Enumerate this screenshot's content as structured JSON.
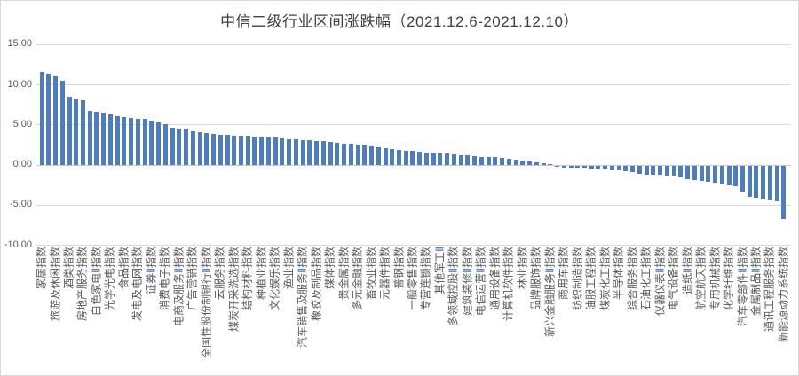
{
  "colors": {
    "bar": "#4f7cba",
    "grid": "#d9d9d9",
    "zero_axis": "#c9c9c9",
    "axis_text": "#595959",
    "title_text": "#404040",
    "roman_numeral_accent": "#4472c4",
    "frame": "#d9d9d9",
    "background": "#ffffff"
  },
  "chart_data": {
    "type": "bar",
    "title": "中信二级行业区间涨跌幅（2021.12.6-2021.12.10）",
    "ylabel": "",
    "xlabel": "",
    "ylim": [
      -10,
      15
    ],
    "grid": true,
    "legend": false,
    "yticks": [
      {
        "value": 15,
        "label": "15.00"
      },
      {
        "value": 10,
        "label": "10.00"
      },
      {
        "value": 5,
        "label": "5.00"
      },
      {
        "value": 0,
        "label": "0.00"
      },
      {
        "value": -5,
        "label": "-5.00"
      },
      {
        "value": -10,
        "label": "-10.00"
      }
    ],
    "note_label_interval": "axis labels shown for every 2nd bar",
    "label_every_n_bars": 2,
    "x_labels": [
      "家居指数",
      "旅游及休闲指数",
      "酒类指数",
      "房地产服务指数",
      "白色家电Ⅱ指数",
      "光学光电指数",
      "食品指数",
      "发电及电网指数",
      "证券Ⅱ指数",
      "消费电子指数",
      "电商及服务Ⅱ指数",
      "广告营销指数",
      "全国性股份制银行Ⅱ指数",
      "云服务指数",
      "煤炭开采洗选指数",
      "结构材料指数",
      "种植业指数",
      "文化娱乐指数",
      "渔业指数",
      "汽车销售及服务Ⅱ指数",
      "橡胶及制品指数",
      "媒体指数",
      "贵金属指数",
      "多元金融指数",
      "畜牧业指数",
      "元器件指数",
      "普钢指数",
      "一般零售指数",
      "专营连锁指数",
      "其他军工Ⅱ",
      "多领域控股Ⅱ指数",
      "建筑装修Ⅱ指数",
      "电信运营Ⅱ指数",
      "通用设备指数",
      "计算机软件指数",
      "林业指数",
      "品牌服饰指数",
      "新兴金融服务Ⅱ指数",
      "商用车指数",
      "纺织制造指数",
      "油服工程指数",
      "煤炭化工指数",
      "半导体指数",
      "综合服务指数",
      "石油化工指数",
      "仪器仪表Ⅱ指数",
      "电气设备指数",
      "造纸Ⅱ指数",
      "航空航天指数",
      "专用机械指数",
      "化学纤维指数",
      "汽车零部件Ⅱ指数",
      "金属制品Ⅱ指数",
      "通讯工程服务指数",
      "新能源动力系统指数"
    ],
    "values": [
      11.6,
      11.3,
      11.0,
      10.4,
      8.5,
      8.1,
      8.0,
      6.7,
      6.6,
      6.5,
      6.3,
      6.0,
      5.9,
      5.85,
      5.7,
      5.65,
      5.5,
      5.3,
      5.0,
      4.6,
      4.5,
      4.45,
      4.2,
      4.1,
      3.9,
      3.8,
      3.75,
      3.7,
      3.65,
      3.6,
      3.55,
      3.5,
      3.45,
      3.4,
      3.35,
      3.3,
      3.2,
      3.15,
      3.1,
      3.0,
      2.95,
      2.9,
      2.8,
      2.75,
      2.65,
      2.6,
      2.5,
      2.4,
      2.3,
      2.2,
      2.1,
      2.0,
      1.85,
      1.75,
      1.7,
      1.6,
      1.55,
      1.5,
      1.4,
      1.35,
      1.3,
      1.2,
      1.15,
      1.1,
      1.0,
      0.95,
      0.9,
      0.8,
      0.7,
      0.6,
      0.5,
      0.4,
      0.3,
      0.2,
      0.1,
      -0.1,
      -0.3,
      -0.35,
      -0.4,
      -0.4,
      -0.45,
      -0.5,
      -0.5,
      -0.6,
      -0.65,
      -0.7,
      -0.8,
      -1.0,
      -1.1,
      -1.2,
      -1.2,
      -1.25,
      -1.3,
      -1.5,
      -1.7,
      -1.8,
      -1.9,
      -2.0,
      -2.2,
      -2.4,
      -2.5,
      -2.6,
      -3.2,
      -3.9,
      -4.0,
      -4.1,
      -4.2,
      -4.5,
      -6.7
    ]
  }
}
